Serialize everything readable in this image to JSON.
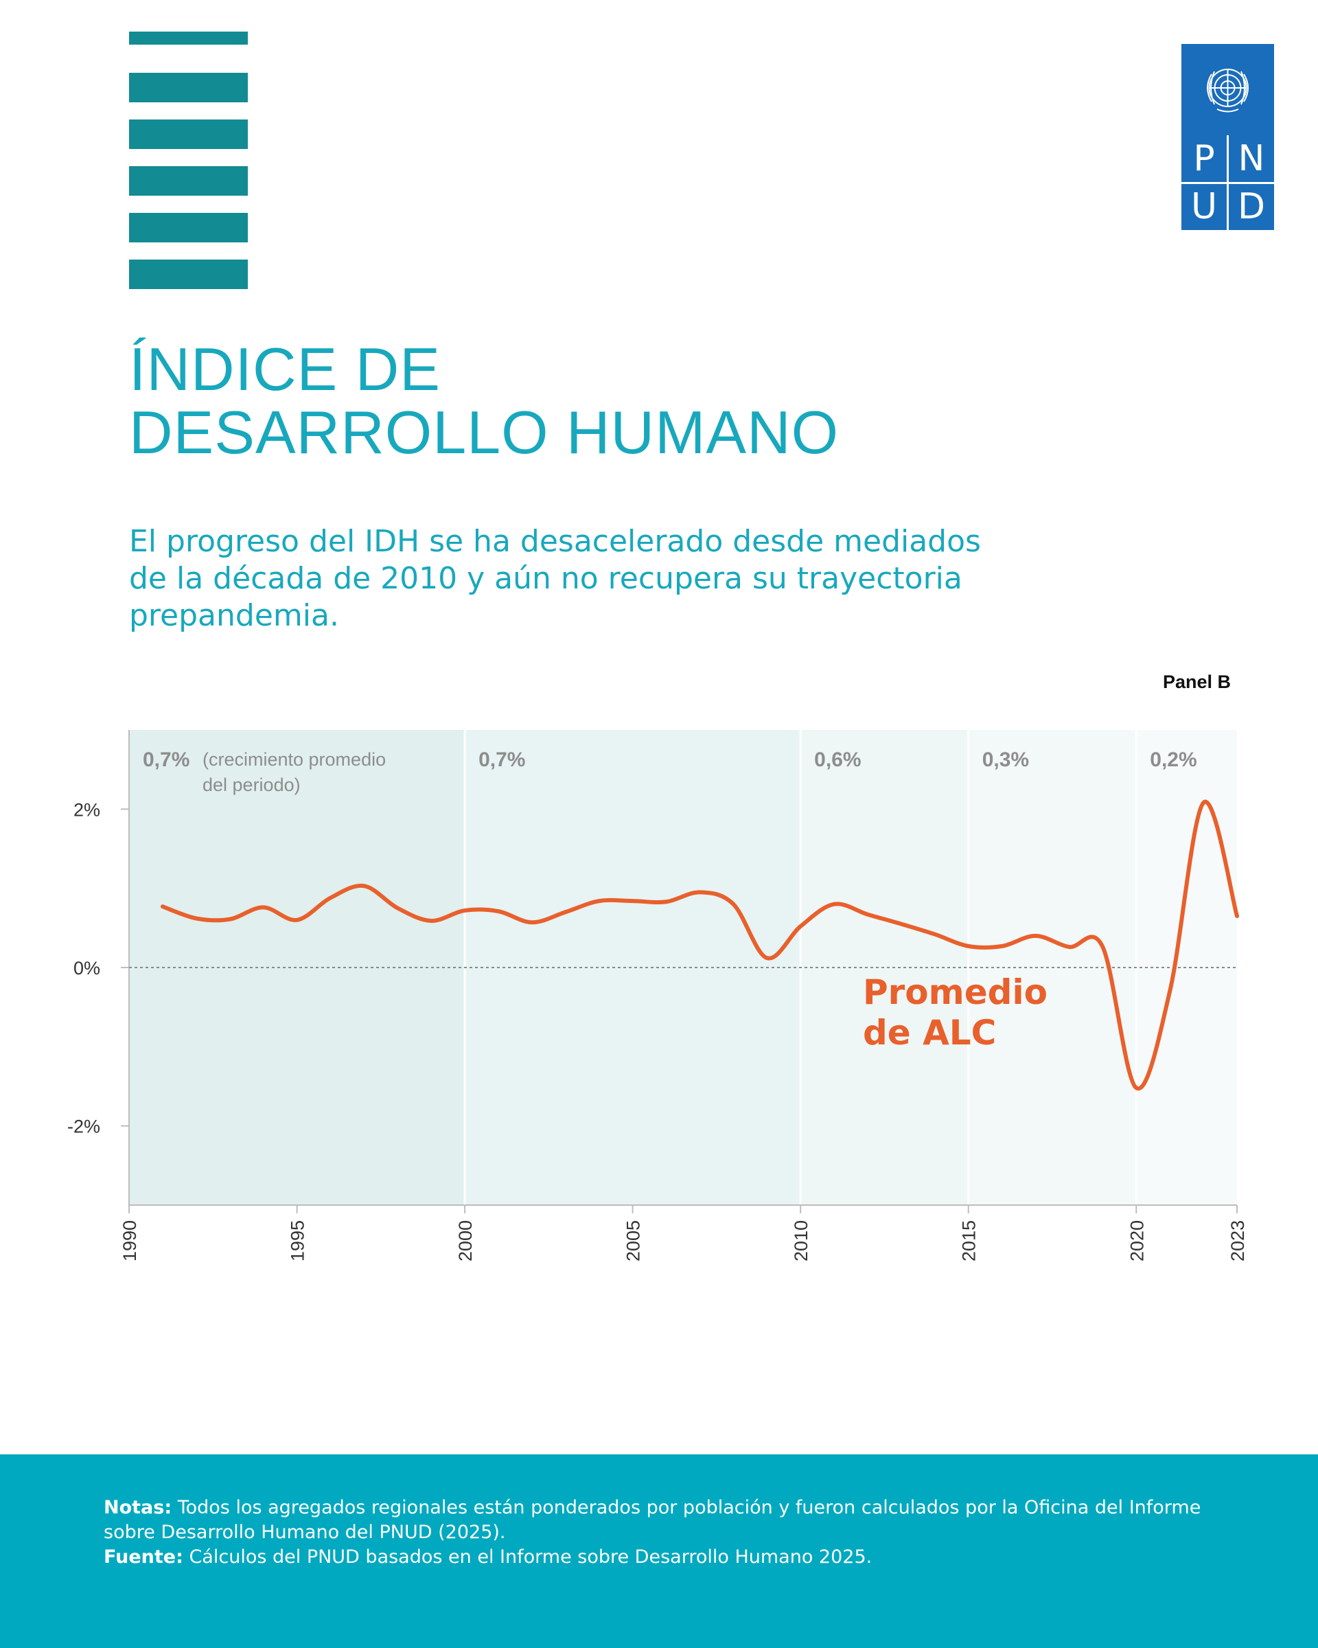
{
  "header": {
    "stripe_color": "#138b93",
    "stripe_count": 6,
    "logo": {
      "letters": [
        "P",
        "N",
        "U",
        "D"
      ],
      "color": "#1a6dba",
      "emblem": "un-emblem-icon"
    }
  },
  "title": {
    "line1": "ÍNDICE DE",
    "line2": "DESARROLLO HUMANO"
  },
  "subtitle": "El progreso del IDH se ha desacelerado desde mediados de la década de 2010 y aún no recupera su trayectoria prepandemia.",
  "panel_label": "Panel B",
  "chart_data": {
    "type": "line",
    "x_range": [
      1990,
      2023
    ],
    "ylim": [
      -3,
      3
    ],
    "y_ticks": [
      {
        "value": 2,
        "label": "2%"
      },
      {
        "value": 0,
        "label": "0%"
      },
      {
        "value": -2,
        "label": "-2%"
      }
    ],
    "x_ticks": [
      1990,
      1995,
      2000,
      2005,
      2010,
      2015,
      2020,
      2023
    ],
    "periods": [
      {
        "start": 1990,
        "end": 2000,
        "value_label": "0,7%",
        "note": "(crecimiento promedio del periodo)",
        "fill": "#e1efee"
      },
      {
        "start": 2000,
        "end": 2010,
        "value_label": "0,7%",
        "note": "",
        "fill": "#e8f3f3"
      },
      {
        "start": 2010,
        "end": 2015,
        "value_label": "0,6%",
        "note": "",
        "fill": "#eff6f6"
      },
      {
        "start": 2015,
        "end": 2020,
        "value_label": "0,3%",
        "note": "",
        "fill": "#f3f8f8"
      },
      {
        "start": 2020,
        "end": 2023,
        "value_label": "0,2%",
        "note": "",
        "fill": "#f7fafa"
      }
    ],
    "series": [
      {
        "name": "Promedio de ALC",
        "label_lines": [
          "Promedio",
          "de ALC"
        ],
        "color": "#e8602c",
        "x": [
          1991,
          1992,
          1993,
          1994,
          1995,
          1996,
          1997,
          1998,
          1999,
          2000,
          2001,
          2002,
          2003,
          2004,
          2005,
          2006,
          2007,
          2008,
          2009,
          2010,
          2011,
          2012,
          2013,
          2014,
          2015,
          2016,
          2017,
          2018,
          2019,
          2020,
          2021,
          2022,
          2023
        ],
        "values": [
          0.77,
          0.62,
          0.61,
          0.76,
          0.6,
          0.88,
          1.03,
          0.75,
          0.59,
          0.72,
          0.71,
          0.57,
          0.7,
          0.84,
          0.84,
          0.83,
          0.95,
          0.8,
          0.12,
          0.52,
          0.8,
          0.67,
          0.55,
          0.42,
          0.27,
          0.27,
          0.4,
          0.26,
          0.26,
          -1.52,
          -0.3,
          2.08,
          0.65
        ]
      }
    ]
  },
  "footer": {
    "notes_label": "Notas:",
    "notes_text": " Todos los agregados regionales están ponderados por población y fueron calculados por la Oficina del Informe sobre Desarrollo Humano del PNUD (2025).",
    "source_label": "Fuente:",
    "source_text": " Cálculos del PNUD basados en el Informe sobre Desarrollo Humano 2025."
  }
}
